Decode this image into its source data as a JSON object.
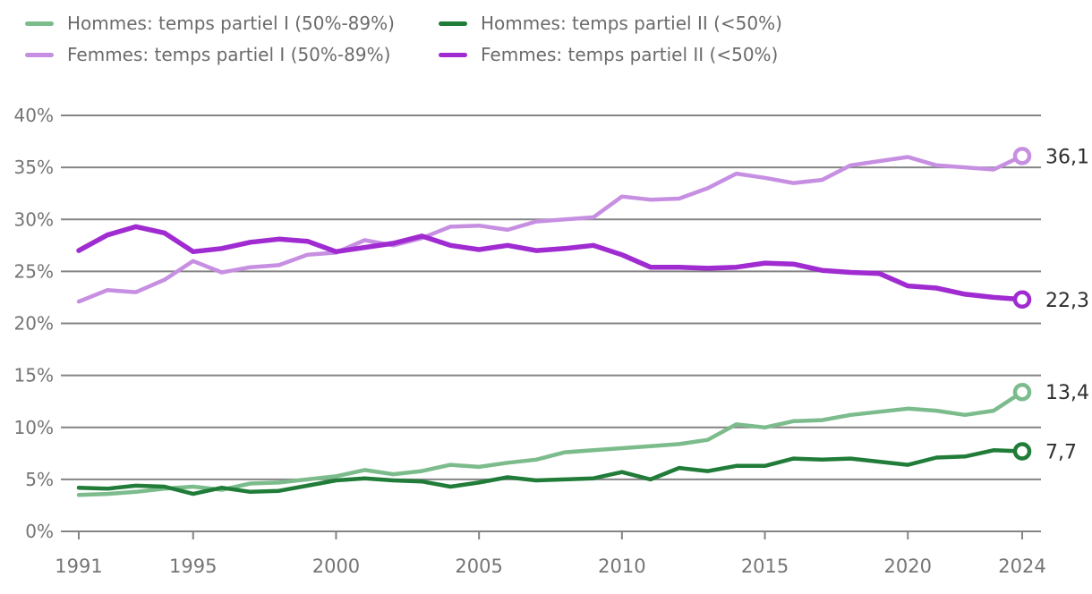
{
  "chart_data": {
    "type": "line",
    "title": "",
    "xlabel": "",
    "ylabel": "",
    "grid": true,
    "legend_position": "top-left",
    "x": {
      "start": 1991,
      "end": 2024,
      "step": 1
    },
    "x_ticks": [
      {
        "value": 1991,
        "label": "1991"
      },
      {
        "value": 1995,
        "label": "1995"
      },
      {
        "value": 2000,
        "label": "2000"
      },
      {
        "value": 2005,
        "label": "2005"
      },
      {
        "value": 2010,
        "label": "2010"
      },
      {
        "value": 2015,
        "label": "2015"
      },
      {
        "value": 2020,
        "label": "2020"
      },
      {
        "value": 2024,
        "label": "2024"
      }
    ],
    "ylim": [
      0,
      40
    ],
    "y_ticks": [
      {
        "value": 0,
        "label": "0%"
      },
      {
        "value": 5,
        "label": "5%"
      },
      {
        "value": 10,
        "label": "10%"
      },
      {
        "value": 15,
        "label": "15%"
      },
      {
        "value": 20,
        "label": "20%"
      },
      {
        "value": 25,
        "label": "25%"
      },
      {
        "value": 30,
        "label": "30%"
      },
      {
        "value": 35,
        "label": "35%"
      },
      {
        "value": 40,
        "label": "40%"
      }
    ],
    "series": [
      {
        "key": "hommes-temps-partiel-1",
        "name": "Hommes: temps partiel I (50%-89%)",
        "color": "#7cbc8c",
        "end_label": "13,4",
        "values": [
          3.5,
          3.6,
          3.8,
          4.1,
          4.3,
          4.0,
          4.6,
          4.7,
          5.0,
          5.3,
          5.9,
          5.5,
          5.8,
          6.4,
          6.2,
          6.6,
          6.9,
          7.6,
          7.8,
          8.0,
          8.2,
          8.4,
          8.8,
          10.3,
          10.0,
          10.6,
          10.7,
          11.2,
          11.5,
          11.8,
          11.6,
          11.2,
          11.6,
          13.4
        ]
      },
      {
        "key": "hommes-temps-partiel-2",
        "name": "Hommes: temps partiel II (<50%)",
        "color": "#207c38",
        "end_label": "7,7",
        "values": [
          4.2,
          4.1,
          4.4,
          4.3,
          3.6,
          4.2,
          3.8,
          3.9,
          4.4,
          4.9,
          5.1,
          4.9,
          4.8,
          4.3,
          4.7,
          5.2,
          4.9,
          5.0,
          5.1,
          5.7,
          5.0,
          6.1,
          5.8,
          6.3,
          6.3,
          7.0,
          6.9,
          7.0,
          6.7,
          6.4,
          7.1,
          7.2,
          7.8,
          7.7
        ]
      },
      {
        "key": "femmes-temps-partiel-1",
        "name": "Femmes: temps partiel I (50%-89%)",
        "color": "#c78fe2",
        "end_label": "36,1",
        "values": [
          22.1,
          23.2,
          23.0,
          24.2,
          26.0,
          24.9,
          25.4,
          25.6,
          26.6,
          26.8,
          28.0,
          27.5,
          28.2,
          29.3,
          29.4,
          29.0,
          29.8,
          30.0,
          30.2,
          32.2,
          31.9,
          32.0,
          33.0,
          34.4,
          34.0,
          33.5,
          33.8,
          35.2,
          35.6,
          36.0,
          35.2,
          35.0,
          34.8,
          36.1
        ]
      },
      {
        "key": "femmes-temps-partiel-2",
        "name": "Femmes: temps partiel II (<50%)",
        "color": "#9f2bd1",
        "end_label": "22,3",
        "values": [
          27.0,
          28.5,
          29.3,
          28.7,
          26.9,
          27.2,
          27.8,
          28.1,
          27.9,
          26.9,
          27.3,
          27.7,
          28.4,
          27.5,
          27.1,
          27.5,
          27.0,
          27.2,
          27.5,
          26.6,
          25.4,
          25.4,
          25.3,
          25.4,
          25.8,
          25.7,
          25.1,
          24.9,
          24.8,
          23.6,
          23.4,
          22.8,
          22.5,
          22.3
        ]
      }
    ],
    "colors": {
      "grid": "#848484",
      "axis_text": "#757575",
      "legend_text": "#6b6b6b",
      "end_label_text": "#2f2f2f"
    }
  }
}
